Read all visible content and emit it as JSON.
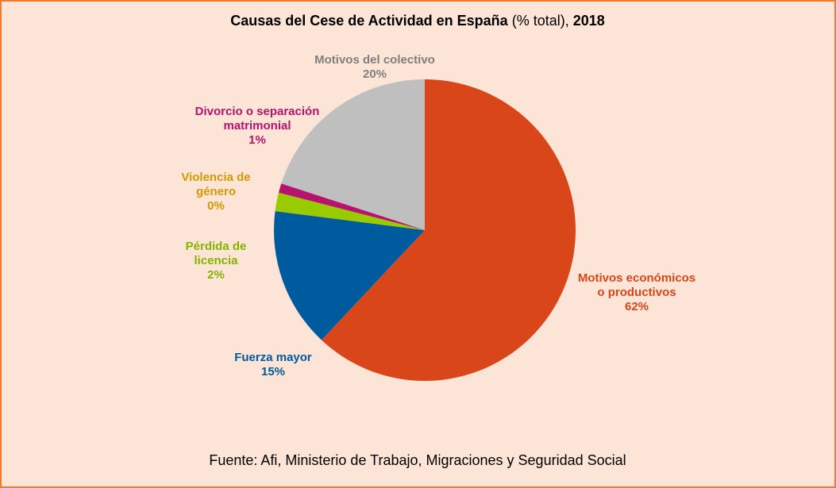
{
  "chart_data": {
    "type": "pie",
    "title": "Causas del Cese de Actividad en España",
    "title_unit": "(% total),",
    "title_year": "2018",
    "categories": [
      "Motivos económicos o productivos",
      "Fuerza mayor",
      "Pérdida de licencia",
      "Violencia de género",
      "Divorcio o separación matrimonial",
      "Motivos del colectivo"
    ],
    "values": [
      62,
      15,
      2,
      0,
      1,
      20
    ],
    "value_labels": [
      "62%",
      "15%",
      "2%",
      "0%",
      "1%",
      "20%"
    ],
    "colors": [
      "#d9461a",
      "#005a9e",
      "#99cc00",
      "#e0a800",
      "#b5136f",
      "#bfbfbf"
    ],
    "label_colors": [
      "#d9461a",
      "#005a9e",
      "#86b300",
      "#d49a00",
      "#b5136f",
      "#7f7f7f"
    ],
    "source": "Fuente: Afi, Ministerio de Trabajo, Migraciones y Seguridad Social"
  }
}
